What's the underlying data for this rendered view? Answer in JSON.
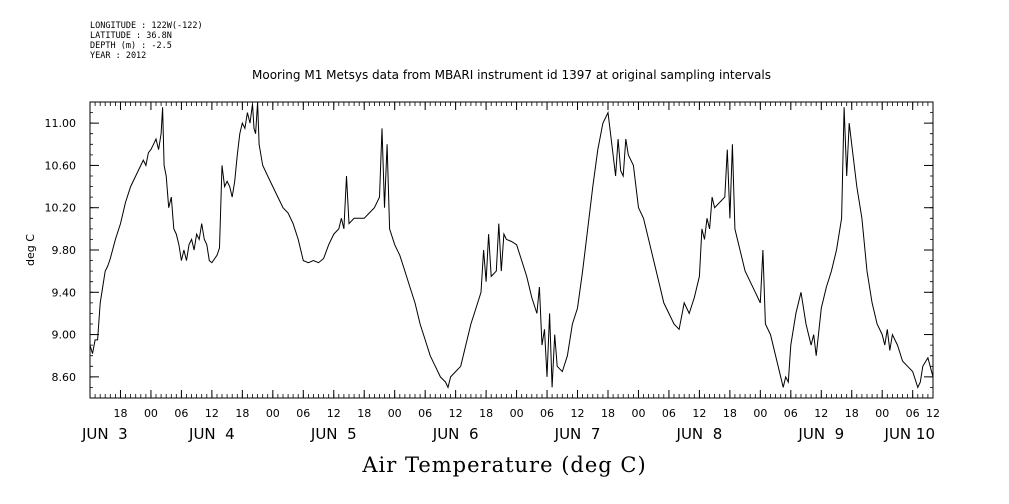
{
  "header": {
    "longitude": "LONGITUDE : 122W(-122)",
    "latitude": "LATITUDE : 36.8N",
    "depth": "DEPTH (m) : -2.5",
    "year": "YEAR : 2012"
  },
  "chart_data": {
    "type": "line",
    "title": "Mooring M1 Metsys data from MBARI instrument id 1397 at original sampling intervals",
    "xlabel": "Air Temperature (deg C)",
    "ylabel": "deg C",
    "x_unit": "hours from JUN 2 12:00, 2012",
    "xlim": [
      0,
      166
    ],
    "ylim": [
      8.4,
      11.2
    ],
    "yticks": [
      8.6,
      9.0,
      9.4,
      9.8,
      10.2,
      10.6,
      11.0
    ],
    "ytick_labels": [
      "8.60",
      "9.00",
      "9.40",
      "9.80",
      "10.20",
      "10.60",
      "11.00"
    ],
    "hour_ticks": [
      {
        "x": 6,
        "label": "18"
      },
      {
        "x": 12,
        "label": "00"
      },
      {
        "x": 18,
        "label": "06"
      },
      {
        "x": 24,
        "label": "12"
      },
      {
        "x": 30,
        "label": "18"
      },
      {
        "x": 36,
        "label": "00"
      },
      {
        "x": 42,
        "label": "06"
      },
      {
        "x": 48,
        "label": "12"
      },
      {
        "x": 54,
        "label": "18"
      },
      {
        "x": 60,
        "label": "00"
      },
      {
        "x": 66,
        "label": "06"
      },
      {
        "x": 72,
        "label": "12"
      },
      {
        "x": 78,
        "label": "18"
      },
      {
        "x": 84,
        "label": "00"
      },
      {
        "x": 90,
        "label": "06"
      },
      {
        "x": 96,
        "label": "12"
      },
      {
        "x": 102,
        "label": "18"
      },
      {
        "x": 108,
        "label": "00"
      },
      {
        "x": 114,
        "label": "06"
      },
      {
        "x": 120,
        "label": "12"
      },
      {
        "x": 126,
        "label": "18"
      },
      {
        "x": 132,
        "label": "00"
      },
      {
        "x": 138,
        "label": "06"
      },
      {
        "x": 144,
        "label": "12"
      },
      {
        "x": 150,
        "label": "18"
      },
      {
        "x": 156,
        "label": "00"
      },
      {
        "x": 162,
        "label": "06"
      },
      {
        "x": 166,
        "label": "12"
      }
    ],
    "day_labels": [
      {
        "x": 0,
        "label": "JUN  3"
      },
      {
        "x": 24,
        "label": "JUN  4"
      },
      {
        "x": 48,
        "label": "JUN  5"
      },
      {
        "x": 72,
        "label": "JUN  6"
      },
      {
        "x": 96,
        "label": "JUN  7"
      },
      {
        "x": 120,
        "label": "JUN  8"
      },
      {
        "x": 144,
        "label": "JUN  9"
      },
      {
        "x": 166,
        "label": "JUN 10"
      }
    ],
    "series": [
      {
        "color": "#000000",
        "points": [
          [
            0.0,
            8.9
          ],
          [
            0.5,
            8.82
          ],
          [
            1.0,
            8.95
          ],
          [
            1.5,
            8.95
          ],
          [
            2.0,
            9.3
          ],
          [
            2.5,
            9.45
          ],
          [
            3.0,
            9.6
          ],
          [
            3.5,
            9.65
          ],
          [
            4.0,
            9.72
          ],
          [
            5.0,
            9.9
          ],
          [
            6.0,
            10.05
          ],
          [
            7.0,
            10.25
          ],
          [
            8.0,
            10.4
          ],
          [
            9.0,
            10.5
          ],
          [
            10.0,
            10.6
          ],
          [
            10.5,
            10.65
          ],
          [
            11.0,
            10.6
          ],
          [
            11.5,
            10.72
          ],
          [
            12.0,
            10.75
          ],
          [
            12.5,
            10.8
          ],
          [
            13.0,
            10.85
          ],
          [
            13.5,
            10.75
          ],
          [
            14.0,
            10.9
          ],
          [
            14.3,
            11.15
          ],
          [
            14.6,
            10.6
          ],
          [
            15.0,
            10.5
          ],
          [
            15.5,
            10.2
          ],
          [
            16.0,
            10.3
          ],
          [
            16.5,
            10.0
          ],
          [
            17.0,
            9.95
          ],
          [
            17.5,
            9.85
          ],
          [
            18.0,
            9.7
          ],
          [
            18.5,
            9.8
          ],
          [
            19.0,
            9.7
          ],
          [
            19.5,
            9.85
          ],
          [
            20.0,
            9.9
          ],
          [
            20.5,
            9.8
          ],
          [
            21.0,
            9.95
          ],
          [
            21.5,
            9.9
          ],
          [
            22.0,
            10.05
          ],
          [
            22.5,
            9.9
          ],
          [
            23.0,
            9.85
          ],
          [
            23.5,
            9.7
          ],
          [
            24.0,
            9.68
          ],
          [
            25.0,
            9.75
          ],
          [
            25.5,
            9.82
          ],
          [
            26.0,
            10.6
          ],
          [
            26.5,
            10.4
          ],
          [
            27.0,
            10.45
          ],
          [
            27.5,
            10.4
          ],
          [
            28.0,
            10.3
          ],
          [
            28.5,
            10.45
          ],
          [
            29.0,
            10.7
          ],
          [
            29.5,
            10.9
          ],
          [
            30.0,
            11.0
          ],
          [
            30.5,
            10.95
          ],
          [
            31.0,
            11.1
          ],
          [
            31.5,
            11.0
          ],
          [
            32.0,
            11.18
          ],
          [
            32.3,
            10.95
          ],
          [
            32.6,
            10.9
          ],
          [
            33.0,
            11.2
          ],
          [
            33.3,
            10.8
          ],
          [
            34.0,
            10.6
          ],
          [
            35.0,
            10.5
          ],
          [
            36.0,
            10.4
          ],
          [
            37.0,
            10.3
          ],
          [
            38.0,
            10.2
          ],
          [
            39.0,
            10.15
          ],
          [
            40.0,
            10.05
          ],
          [
            41.0,
            9.9
          ],
          [
            42.0,
            9.7
          ],
          [
            43.0,
            9.68
          ],
          [
            44.0,
            9.7
          ],
          [
            45.0,
            9.68
          ],
          [
            46.0,
            9.72
          ],
          [
            47.0,
            9.85
          ],
          [
            48.0,
            9.95
          ],
          [
            49.0,
            10.0
          ],
          [
            49.5,
            10.1
          ],
          [
            50.0,
            10.0
          ],
          [
            50.5,
            10.5
          ],
          [
            51.0,
            10.05
          ],
          [
            52.0,
            10.1
          ],
          [
            53.0,
            10.1
          ],
          [
            54.0,
            10.1
          ],
          [
            55.0,
            10.15
          ],
          [
            56.0,
            10.2
          ],
          [
            57.0,
            10.3
          ],
          [
            57.5,
            10.95
          ],
          [
            58.0,
            10.2
          ],
          [
            58.5,
            10.8
          ],
          [
            59.0,
            10.0
          ],
          [
            60.0,
            9.85
          ],
          [
            61.0,
            9.75
          ],
          [
            62.0,
            9.6
          ],
          [
            63.0,
            9.45
          ],
          [
            64.0,
            9.3
          ],
          [
            65.0,
            9.1
          ],
          [
            66.0,
            8.95
          ],
          [
            67.0,
            8.8
          ],
          [
            68.0,
            8.7
          ],
          [
            69.0,
            8.6
          ],
          [
            70.0,
            8.55
          ],
          [
            70.5,
            8.5
          ],
          [
            71.0,
            8.6
          ],
          [
            72.0,
            8.65
          ],
          [
            73.0,
            8.7
          ],
          [
            74.0,
            8.9
          ],
          [
            75.0,
            9.1
          ],
          [
            76.0,
            9.25
          ],
          [
            77.0,
            9.4
          ],
          [
            77.5,
            9.8
          ],
          [
            78.0,
            9.5
          ],
          [
            78.5,
            9.95
          ],
          [
            79.0,
            9.55
          ],
          [
            80.0,
            9.6
          ],
          [
            80.5,
            10.05
          ],
          [
            81.0,
            9.6
          ],
          [
            81.5,
            9.95
          ],
          [
            82.0,
            9.9
          ],
          [
            83.0,
            9.88
          ],
          [
            84.0,
            9.85
          ],
          [
            85.0,
            9.7
          ],
          [
            86.0,
            9.55
          ],
          [
            87.0,
            9.35
          ],
          [
            88.0,
            9.2
          ],
          [
            88.5,
            9.45
          ],
          [
            89.0,
            8.9
          ],
          [
            89.5,
            9.05
          ],
          [
            90.0,
            8.6
          ],
          [
            90.5,
            9.2
          ],
          [
            91.0,
            8.5
          ],
          [
            91.5,
            9.0
          ],
          [
            92.0,
            8.7
          ],
          [
            93.0,
            8.65
          ],
          [
            94.0,
            8.8
          ],
          [
            95.0,
            9.1
          ],
          [
            96.0,
            9.25
          ],
          [
            97.0,
            9.6
          ],
          [
            98.0,
            10.0
          ],
          [
            99.0,
            10.4
          ],
          [
            100.0,
            10.75
          ],
          [
            101.0,
            11.0
          ],
          [
            102.0,
            11.1
          ],
          [
            103.0,
            10.7
          ],
          [
            103.5,
            10.5
          ],
          [
            104.0,
            10.85
          ],
          [
            104.5,
            10.55
          ],
          [
            105.0,
            10.5
          ],
          [
            105.5,
            10.85
          ],
          [
            106.0,
            10.7
          ],
          [
            107.0,
            10.6
          ],
          [
            108.0,
            10.2
          ],
          [
            109.0,
            10.1
          ],
          [
            110.0,
            9.9
          ],
          [
            111.0,
            9.7
          ],
          [
            112.0,
            9.5
          ],
          [
            113.0,
            9.3
          ],
          [
            114.0,
            9.2
          ],
          [
            115.0,
            9.1
          ],
          [
            116.0,
            9.05
          ],
          [
            117.0,
            9.3
          ],
          [
            118.0,
            9.2
          ],
          [
            119.0,
            9.35
          ],
          [
            120.0,
            9.55
          ],
          [
            120.5,
            10.0
          ],
          [
            121.0,
            9.9
          ],
          [
            121.5,
            10.1
          ],
          [
            122.0,
            10.0
          ],
          [
            122.5,
            10.3
          ],
          [
            123.0,
            10.2
          ],
          [
            124.0,
            10.25
          ],
          [
            125.0,
            10.3
          ],
          [
            125.5,
            10.75
          ],
          [
            126.0,
            10.1
          ],
          [
            126.5,
            10.8
          ],
          [
            127.0,
            10.0
          ],
          [
            128.0,
            9.8
          ],
          [
            129.0,
            9.6
          ],
          [
            130.0,
            9.5
          ],
          [
            131.0,
            9.4
          ],
          [
            132.0,
            9.3
          ],
          [
            132.5,
            9.8
          ],
          [
            133.0,
            9.1
          ],
          [
            134.0,
            9.0
          ],
          [
            135.0,
            8.8
          ],
          [
            136.0,
            8.6
          ],
          [
            136.5,
            8.5
          ],
          [
            137.0,
            8.6
          ],
          [
            137.5,
            8.55
          ],
          [
            138.0,
            8.9
          ],
          [
            139.0,
            9.2
          ],
          [
            140.0,
            9.4
          ],
          [
            141.0,
            9.1
          ],
          [
            142.0,
            8.9
          ],
          [
            142.5,
            9.0
          ],
          [
            143.0,
            8.8
          ],
          [
            144.0,
            9.25
          ],
          [
            145.0,
            9.45
          ],
          [
            146.0,
            9.6
          ],
          [
            147.0,
            9.8
          ],
          [
            148.0,
            10.1
          ],
          [
            148.5,
            11.15
          ],
          [
            149.0,
            10.5
          ],
          [
            149.5,
            11.0
          ],
          [
            150.0,
            10.8
          ],
          [
            151.0,
            10.4
          ],
          [
            152.0,
            10.1
          ],
          [
            153.0,
            9.6
          ],
          [
            154.0,
            9.3
          ],
          [
            155.0,
            9.1
          ],
          [
            156.0,
            9.0
          ],
          [
            156.5,
            8.9
          ],
          [
            157.0,
            9.05
          ],
          [
            157.5,
            8.85
          ],
          [
            158.0,
            9.0
          ],
          [
            159.0,
            8.9
          ],
          [
            160.0,
            8.75
          ],
          [
            161.0,
            8.7
          ],
          [
            162.0,
            8.65
          ],
          [
            163.0,
            8.5
          ],
          [
            163.5,
            8.55
          ],
          [
            164.0,
            8.7
          ],
          [
            165.0,
            8.78
          ],
          [
            166.0,
            8.6
          ]
        ]
      }
    ]
  }
}
